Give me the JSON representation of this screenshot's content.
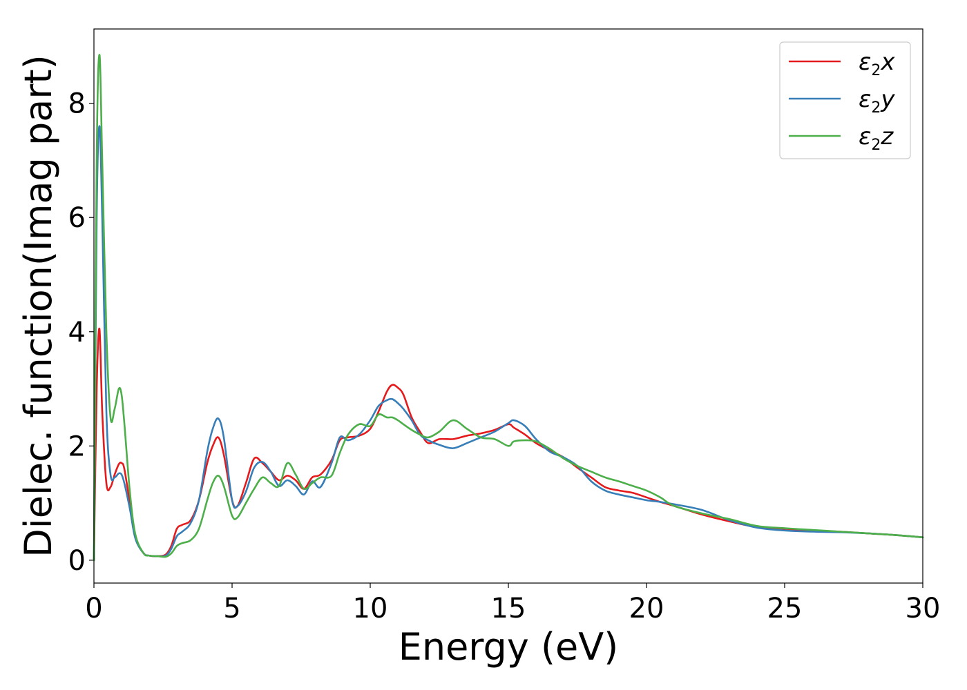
{
  "chart_data": {
    "type": "line",
    "title": "",
    "xlabel": "Energy (eV)",
    "ylabel": "Dielec. function(Imag part)",
    "xlim": [
      0,
      30
    ],
    "ylim": [
      -0.4,
      9.3
    ],
    "xticks": [
      0,
      5,
      10,
      15,
      20,
      25,
      30
    ],
    "yticks": [
      0,
      2,
      4,
      6,
      8
    ],
    "grid": false,
    "legend_position": "top-right",
    "series": [
      {
        "name": "ε2x",
        "legend_base": "ε",
        "legend_sub": "2",
        "legend_suffix": "x",
        "color": "#e41a1c",
        "x": [
          0,
          0.1,
          0.2,
          0.3,
          0.45,
          0.6,
          0.75,
          0.9,
          1.0,
          1.1,
          1.3,
          1.5,
          1.8,
          2.0,
          2.3,
          2.6,
          2.8,
          3.0,
          3.2,
          3.5,
          3.8,
          4.1,
          4.3,
          4.5,
          4.7,
          5.0,
          5.2,
          5.5,
          5.8,
          6.1,
          6.4,
          6.7,
          7.0,
          7.3,
          7.6,
          7.9,
          8.2,
          8.6,
          8.9,
          9.2,
          9.6,
          10.0,
          10.3,
          10.6,
          10.8,
          11.0,
          11.2,
          11.5,
          11.8,
          12.1,
          12.5,
          13.0,
          13.5,
          14.0,
          14.5,
          15.0,
          15.2,
          15.6,
          16.0,
          16.5,
          17.0,
          17.5,
          18.0,
          18.5,
          19.0,
          19.5,
          20.0,
          20.5,
          21.0,
          22.0,
          23.0,
          24.0,
          25.0,
          26.0,
          27.0,
          28.0,
          29.0,
          30.0
        ],
        "values": [
          0.0,
          3.0,
          4.05,
          2.6,
          1.35,
          1.28,
          1.5,
          1.68,
          1.7,
          1.6,
          1.0,
          0.4,
          0.12,
          0.08,
          0.07,
          0.1,
          0.25,
          0.55,
          0.62,
          0.7,
          1.05,
          1.7,
          2.0,
          2.15,
          1.85,
          1.05,
          0.95,
          1.35,
          1.78,
          1.7,
          1.55,
          1.4,
          1.48,
          1.4,
          1.25,
          1.45,
          1.5,
          1.75,
          2.1,
          2.15,
          2.18,
          2.3,
          2.6,
          2.95,
          3.07,
          3.02,
          2.9,
          2.5,
          2.25,
          2.05,
          2.12,
          2.12,
          2.18,
          2.22,
          2.28,
          2.38,
          2.32,
          2.2,
          2.05,
          1.92,
          1.8,
          1.62,
          1.45,
          1.28,
          1.22,
          1.18,
          1.1,
          1.02,
          0.95,
          0.8,
          0.68,
          0.58,
          0.55,
          0.52,
          0.5,
          0.47,
          0.44,
          0.4
        ]
      },
      {
        "name": "ε2y",
        "legend_base": "ε",
        "legend_sub": "2",
        "legend_suffix": "y",
        "color": "#377eb8",
        "x": [
          0,
          0.1,
          0.2,
          0.3,
          0.45,
          0.6,
          0.75,
          0.9,
          1.0,
          1.1,
          1.3,
          1.5,
          1.8,
          2.0,
          2.3,
          2.6,
          2.8,
          3.0,
          3.2,
          3.5,
          3.8,
          4.1,
          4.3,
          4.5,
          4.7,
          5.0,
          5.2,
          5.5,
          5.8,
          6.1,
          6.4,
          6.7,
          7.0,
          7.3,
          7.6,
          7.9,
          8.2,
          8.6,
          8.9,
          9.2,
          9.6,
          10.0,
          10.3,
          10.6,
          10.8,
          11.0,
          11.2,
          11.5,
          11.8,
          12.1,
          12.5,
          13.0,
          13.5,
          14.0,
          14.5,
          15.0,
          15.2,
          15.6,
          16.0,
          16.5,
          17.0,
          17.5,
          18.0,
          18.5,
          19.0,
          19.5,
          20.0,
          20.5,
          21.0,
          22.0,
          23.0,
          24.0,
          25.0,
          26.0,
          27.0,
          28.0,
          29.0,
          30.0
        ],
        "values": [
          0.0,
          6.0,
          7.6,
          6.0,
          2.6,
          1.5,
          1.45,
          1.52,
          1.5,
          1.35,
          0.9,
          0.38,
          0.12,
          0.08,
          0.07,
          0.08,
          0.2,
          0.42,
          0.5,
          0.65,
          1.05,
          1.9,
          2.3,
          2.48,
          2.15,
          1.05,
          0.95,
          1.2,
          1.62,
          1.72,
          1.55,
          1.3,
          1.4,
          1.3,
          1.15,
          1.38,
          1.28,
          1.7,
          2.15,
          2.1,
          2.2,
          2.45,
          2.7,
          2.8,
          2.82,
          2.75,
          2.65,
          2.45,
          2.2,
          2.1,
          2.02,
          1.96,
          2.05,
          2.15,
          2.25,
          2.4,
          2.45,
          2.35,
          2.12,
          1.9,
          1.8,
          1.65,
          1.38,
          1.22,
          1.15,
          1.1,
          1.05,
          1.02,
          0.98,
          0.88,
          0.7,
          0.57,
          0.52,
          0.5,
          0.49,
          0.47,
          0.44,
          0.4
        ]
      },
      {
        "name": "ε2z",
        "legend_base": "ε",
        "legend_sub": "2",
        "legend_suffix": "z",
        "color": "#4daf4a",
        "x": [
          0,
          0.1,
          0.2,
          0.3,
          0.45,
          0.6,
          0.75,
          0.9,
          1.0,
          1.1,
          1.3,
          1.5,
          1.8,
          2.0,
          2.3,
          2.6,
          2.8,
          3.0,
          3.2,
          3.5,
          3.8,
          4.1,
          4.3,
          4.5,
          4.7,
          5.0,
          5.2,
          5.5,
          5.8,
          6.1,
          6.4,
          6.7,
          7.0,
          7.3,
          7.6,
          7.9,
          8.2,
          8.6,
          8.9,
          9.2,
          9.6,
          10.0,
          10.3,
          10.6,
          10.8,
          11.0,
          11.2,
          11.5,
          11.8,
          12.1,
          12.5,
          13.0,
          13.5,
          14.0,
          14.5,
          15.0,
          15.2,
          15.6,
          16.0,
          16.5,
          17.0,
          17.5,
          18.0,
          18.5,
          19.0,
          19.5,
          20.0,
          20.5,
          21.0,
          22.0,
          23.0,
          24.0,
          25.0,
          26.0,
          27.0,
          28.0,
          29.0,
          30.0
        ],
        "values": [
          0.0,
          7.0,
          8.85,
          7.0,
          4.0,
          2.5,
          2.65,
          3.0,
          2.9,
          2.4,
          1.2,
          0.45,
          0.12,
          0.08,
          0.07,
          0.06,
          0.12,
          0.25,
          0.3,
          0.35,
          0.55,
          1.05,
          1.35,
          1.48,
          1.3,
          0.78,
          0.75,
          1.0,
          1.25,
          1.45,
          1.35,
          1.3,
          1.7,
          1.5,
          1.25,
          1.35,
          1.45,
          1.48,
          1.88,
          2.2,
          2.38,
          2.35,
          2.55,
          2.5,
          2.5,
          2.45,
          2.38,
          2.28,
          2.2,
          2.15,
          2.25,
          2.45,
          2.3,
          2.15,
          2.12,
          2.0,
          2.08,
          2.1,
          2.08,
          1.95,
          1.78,
          1.65,
          1.55,
          1.45,
          1.38,
          1.3,
          1.22,
          1.1,
          0.95,
          0.82,
          0.72,
          0.6,
          0.56,
          0.53,
          0.5,
          0.47,
          0.44,
          0.4
        ]
      }
    ]
  }
}
